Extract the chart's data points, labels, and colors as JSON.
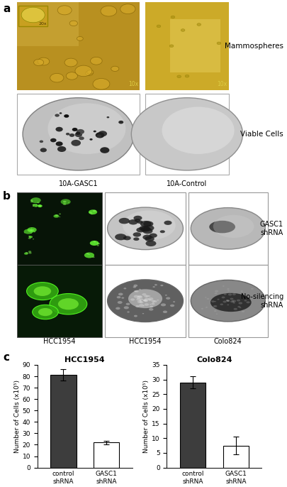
{
  "panel_a_label": "a",
  "panel_b_label": "b",
  "panel_c_label": "c",
  "mammospheres_label": "Mammospheres",
  "viable_cells_label": "Viable Cells",
  "label_10x_left": "10x",
  "label_10x_right": "10x",
  "label_20x": "20x",
  "label_gasc1_top": "10A-GASC1",
  "label_control_top": "10A-Control",
  "gasc1_shrna_label": "GASC1\nshRNA",
  "no_silencing_label": "No-silencing\nshRNA",
  "hcc1954_label": "HCC1954",
  "hcc1954_label2": "HCC1954",
  "colo824_label": "Colo824",
  "hcc1954_title": "HCC1954",
  "colo824_title": "Colo824",
  "ylabel": "Number of Cells (x10⁵)",
  "ylabel2": "Number of Cells (x10⁵)",
  "xtick_labels": [
    "control\nshRNA",
    "GASC1\nshRNA"
  ],
  "hcc1954_values": [
    81,
    22
  ],
  "hcc1954_errors": [
    5,
    1.5
  ],
  "hcc1954_colors": [
    "#3d3d3d",
    "#ffffff"
  ],
  "hcc1954_ylim": [
    0,
    90
  ],
  "hcc1954_yticks": [
    0,
    10,
    20,
    30,
    40,
    50,
    60,
    70,
    80,
    90
  ],
  "colo824_values": [
    29,
    7.5
  ],
  "colo824_errors": [
    2,
    3
  ],
  "colo824_colors": [
    "#3d3d3d",
    "#ffffff"
  ],
  "colo824_ylim": [
    0,
    35
  ],
  "colo824_yticks": [
    0,
    5,
    10,
    15,
    20,
    25,
    30,
    35
  ],
  "bar_edgecolor": "#000000",
  "bar_width": 0.6,
  "background_color": "#ffffff",
  "amber1": "#b89020",
  "amber2": "#d4aa30",
  "amber_light": "#e8cc60",
  "green_dark_bg": "#071407",
  "green_dark_bg2": "#0a1f0a",
  "green_bright": "#55ee33",
  "gray_dish": "#c0c0c0",
  "gray_dish_dark": "#686868"
}
